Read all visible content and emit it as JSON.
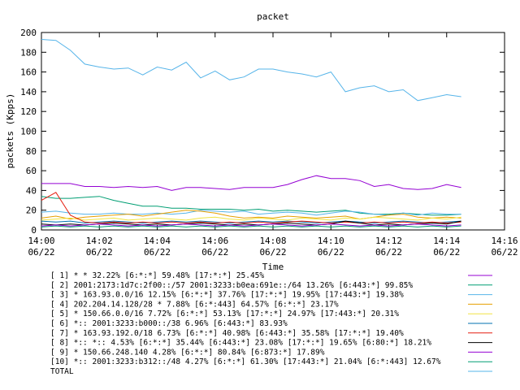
{
  "chart_data": {
    "type": "line",
    "title": "packet",
    "xlabel": "Time",
    "ylabel": "packets (Kpps)",
    "ylim": [
      0,
      200
    ],
    "yticks": [
      0,
      20,
      40,
      60,
      80,
      100,
      120,
      140,
      160,
      180,
      200
    ],
    "xlim": [
      "14:00",
      "14:16"
    ],
    "xticks": [
      {
        "time": "14:00",
        "date": "06/22"
      },
      {
        "time": "14:02",
        "date": "06/22"
      },
      {
        "time": "14:04",
        "date": "06/22"
      },
      {
        "time": "14:06",
        "date": "06/22"
      },
      {
        "time": "14:08",
        "date": "06/22"
      },
      {
        "time": "14:10",
        "date": "06/22"
      },
      {
        "time": "14:12",
        "date": "06/22"
      },
      {
        "time": "14:14",
        "date": "06/22"
      },
      {
        "time": "14:16",
        "date": "06/22"
      }
    ],
    "x": [
      "14:00",
      "14:00:30",
      "14:01",
      "14:01:30",
      "14:02",
      "14:02:30",
      "14:03",
      "14:03:30",
      "14:04",
      "14:04:30",
      "14:05",
      "14:05:30",
      "14:06",
      "14:06:30",
      "14:07",
      "14:07:30",
      "14:08",
      "14:08:30",
      "14:09",
      "14:09:30",
      "14:10",
      "14:10:30",
      "14:11",
      "14:11:30",
      "14:12",
      "14:12:30",
      "14:13",
      "14:13:30",
      "14:14",
      "14:14:30"
    ],
    "grid": false,
    "legend_position": "bottom",
    "series": [
      {
        "name": "[ 1] * * 32.22%  [6:*:*] 59.48% [17:*:*] 25.45%",
        "color": "#9400d3",
        "values": [
          47,
          47,
          47,
          44,
          44,
          43,
          44,
          43,
          44,
          40,
          43,
          43,
          42,
          41,
          43,
          43,
          43,
          46,
          51,
          55,
          52,
          52,
          50,
          44,
          46,
          42,
          41,
          42,
          46,
          43
        ]
      },
      {
        "name": "[ 2] 2001:2173:1d7c:2f00::/57 2001:3233:b0ea:691e::/64 13.26%  [6:443:*] 99.85%",
        "color": "#009e73",
        "values": [
          34,
          32,
          32,
          33,
          34,
          30,
          27,
          24,
          24,
          22,
          22,
          21,
          21,
          21,
          20,
          21,
          19,
          20,
          19,
          18,
          19,
          20,
          17,
          16,
          16,
          17,
          16,
          15,
          15,
          16
        ]
      },
      {
        "name": "[ 3] * 163.93.0.0/16 12.15%  [6:*:*] 37.76% [17:*:*] 19.95% [17:443:*] 19.38%",
        "color": "#56b4e9",
        "values": [
          18,
          19,
          17,
          16,
          16,
          17,
          16,
          16,
          17,
          16,
          17,
          20,
          19,
          18,
          19,
          16,
          17,
          18,
          17,
          15,
          17,
          19,
          18,
          16,
          15,
          17,
          15,
          17,
          16,
          16
        ]
      },
      {
        "name": "[ 4] 202.204.14.128/28 * 7.88%  [6:*:443] 64.57% [6:*:*] 23.17%",
        "color": "#e69f00",
        "values": [
          12,
          14,
          11,
          13,
          14,
          15,
          16,
          14,
          16,
          18,
          20,
          19,
          17,
          14,
          12,
          13,
          12,
          14,
          13,
          12,
          13,
          14,
          11,
          13,
          15,
          16,
          13,
          12,
          13,
          12
        ]
      },
      {
        "name": "[ 5] * 150.66.0.0/16 7.72%  [6:*:*] 53.13% [17:*:*] 24.97% [17:443:*] 20.31%",
        "color": "#f0e442",
        "values": [
          10,
          11,
          12,
          10,
          11,
          12,
          10,
          11,
          12,
          11,
          10,
          12,
          13,
          11,
          10,
          12,
          11,
          10,
          12,
          11,
          10,
          12,
          11,
          13,
          12,
          11,
          10,
          12,
          11,
          13
        ]
      },
      {
        "name": "[ 6] *:: 2001:3233:b000::/38 6.96%  [6:443:*] 83.93%",
        "color": "#0072b2",
        "values": [
          9,
          8,
          9,
          7,
          8,
          9,
          8,
          7,
          8,
          9,
          8,
          9,
          8,
          7,
          8,
          9,
          8,
          9,
          8,
          7,
          8,
          9,
          8,
          7,
          8,
          9,
          8,
          7,
          8,
          9
        ]
      },
      {
        "name": "[ 7] * 163.93.192.0/18 6.73%  [6:*:*] 40.98% [6:443:*] 35.58% [17:*:*] 19.40%",
        "color": "#e51e10",
        "values": [
          30,
          38,
          15,
          8,
          7,
          8,
          7,
          8,
          7,
          8,
          7,
          8,
          7,
          8,
          7,
          8,
          7,
          8,
          9,
          8,
          7,
          8,
          7,
          8,
          7,
          8,
          7,
          8,
          7,
          8
        ]
      },
      {
        "name": "[ 8] *:: *:: 4.53%  [6:*:*] 35.44% [6:443:*] 23.08% [17:*:*] 19.65% [6:80:*] 18.21%",
        "color": "#000000",
        "values": [
          6,
          5,
          6,
          5,
          6,
          7,
          6,
          5,
          6,
          5,
          6,
          7,
          6,
          5,
          6,
          5,
          6,
          7,
          6,
          5,
          6,
          9,
          7,
          5,
          6,
          5,
          6,
          7,
          6,
          9
        ]
      },
      {
        "name": "[ 9] * 150.66.248.140 4.28%  [6:*:*] 80.84% [6:873:*] 17.89%",
        "color": "#9400d3",
        "values": [
          4,
          5,
          4,
          5,
          6,
          5,
          4,
          5,
          4,
          5,
          6,
          5,
          4,
          5,
          4,
          5,
          6,
          5,
          4,
          5,
          6,
          5,
          4,
          5,
          4,
          5,
          6,
          5,
          4,
          5
        ]
      },
      {
        "name": "[10] *:: 2001:3233:b312::/48 4.27%  [6:*:*] 61.30% [17:443:*] 21.04% [6:*:443] 12.67%",
        "color": "#009e73",
        "values": [
          3,
          4,
          3,
          4,
          3,
          4,
          3,
          4,
          3,
          4,
          3,
          4,
          3,
          4,
          3,
          4,
          3,
          4,
          3,
          4,
          3,
          4,
          3,
          4,
          3,
          4,
          3,
          4,
          3,
          4
        ]
      },
      {
        "name": "TOTAL",
        "color": "#56b4e9",
        "values": [
          193,
          192,
          182,
          168,
          165,
          163,
          164,
          157,
          165,
          162,
          170,
          154,
          161,
          152,
          155,
          163,
          163,
          160,
          158,
          155,
          160,
          140,
          144,
          146,
          140,
          142,
          131,
          134,
          137,
          135
        ]
      }
    ]
  }
}
